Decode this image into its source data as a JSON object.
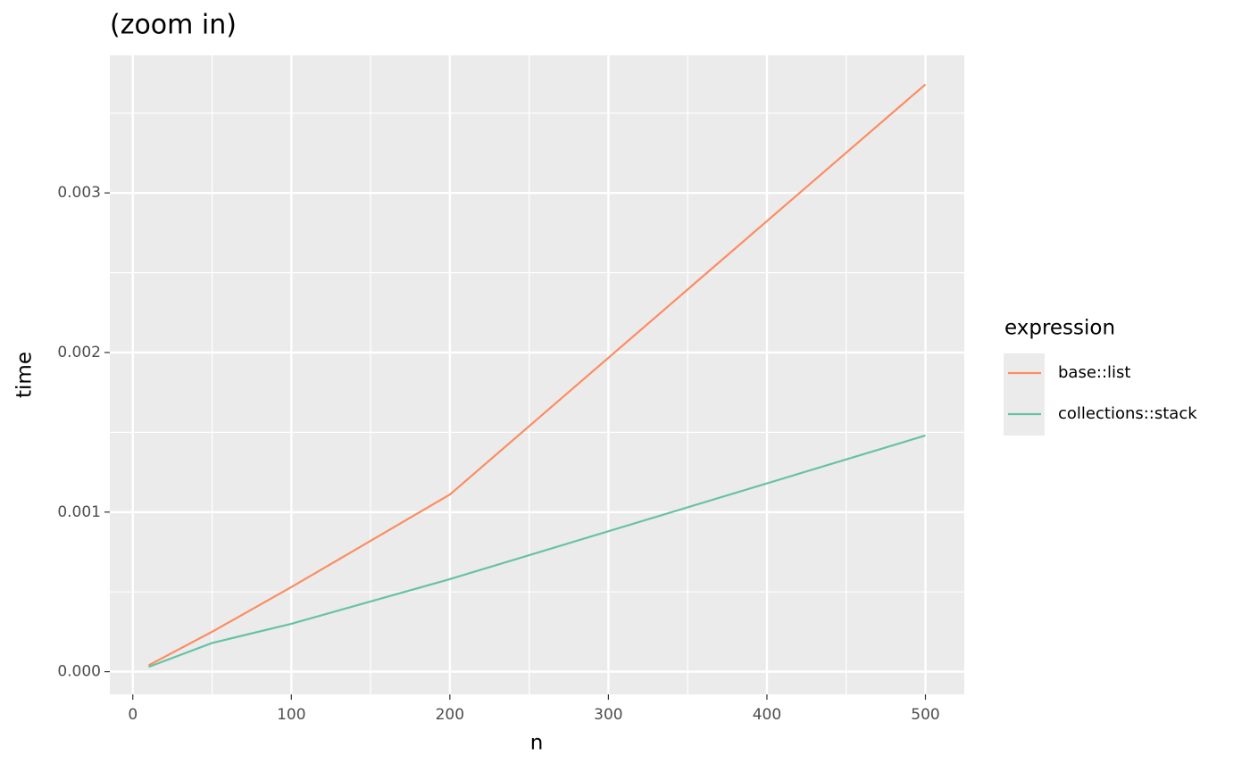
{
  "chart_data": {
    "type": "line",
    "title": "(zoom in)",
    "x_label": "n",
    "y_label": "time",
    "x": [
      10,
      50,
      100,
      200,
      500
    ],
    "series": [
      {
        "name": "base::list",
        "color": "#fc8d62",
        "values": [
          4e-05,
          0.00025,
          0.00053,
          0.00111,
          0.00368
        ]
      },
      {
        "name": "collections::stack",
        "color": "#66c2a5",
        "values": [
          3e-05,
          0.00018,
          0.0003,
          0.00058,
          0.00148
        ]
      }
    ],
    "legend_title": "expression",
    "legend": "right",
    "xlim": [
      -14.5,
      524.5
    ],
    "xticks": [
      0,
      100,
      200,
      300,
      400,
      500
    ],
    "x_minor_ticks": [
      50,
      150,
      250,
      350,
      450
    ],
    "ylim": [
      -0.000142,
      0.003862
    ],
    "yticks": [
      {
        "value": 0,
        "label": "0.000"
      },
      0.001,
      0.002,
      0.003
    ],
    "y_minor_ticks": [
      0.0005,
      0.0015,
      0.0025,
      0.0035
    ],
    "grid": true,
    "panel_color": "#ebebeb"
  }
}
